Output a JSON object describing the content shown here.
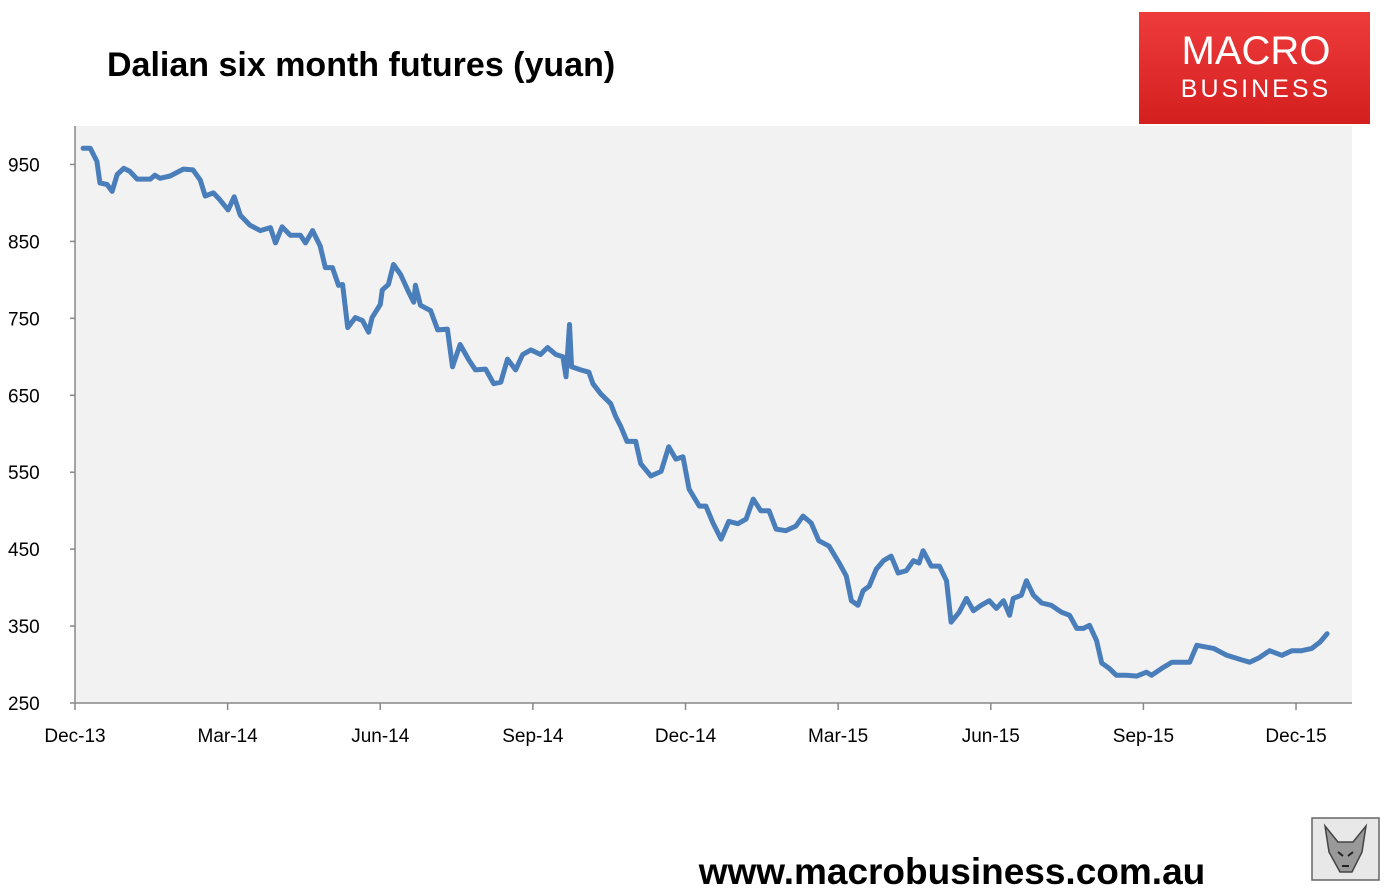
{
  "chart_data": {
    "type": "line",
    "title": "Dalian six month futures (yuan)",
    "x": [
      0.16,
      0.3,
      0.43,
      0.49,
      0.63,
      0.73,
      0.83,
      0.96,
      1.08,
      1.22,
      1.48,
      1.57,
      1.67,
      1.87,
      2.13,
      2.32,
      2.46,
      2.56,
      2.72,
      2.85,
      3.01,
      3.13,
      3.25,
      3.44,
      3.64,
      3.84,
      3.94,
      4.07,
      4.23,
      4.43,
      4.53,
      4.67,
      4.82,
      4.92,
      5.06,
      5.18,
      5.26,
      5.36,
      5.51,
      5.65,
      5.77,
      5.84,
      6.0,
      6.04,
      6.16,
      6.26,
      6.4,
      6.56,
      6.66,
      6.69,
      6.79,
      6.99,
      7.13,
      7.32,
      7.42,
      7.57,
      7.74,
      7.87,
      8.07,
      8.23,
      8.37,
      8.5,
      8.66,
      8.8,
      8.96,
      9.15,
      9.29,
      9.45,
      9.59,
      9.65,
      9.72,
      9.76,
      9.94,
      10.1,
      10.18,
      10.33,
      10.53,
      10.63,
      10.73,
      10.85,
      11.02,
      11.12,
      11.32,
      11.52,
      11.67,
      11.81,
      11.95,
      12.07,
      12.27,
      12.4,
      12.54,
      12.7,
      12.85,
      13.03,
      13.19,
      13.33,
      13.48,
      13.64,
      13.78,
      13.97,
      14.17,
      14.31,
      14.47,
      14.62,
      14.82,
      15.02,
      15.16,
      15.26,
      15.39,
      15.49,
      15.61,
      15.75,
      15.89,
      16.04,
      16.18,
      16.34,
      16.48,
      16.59,
      16.67,
      16.83,
      16.99,
      17.13,
      17.22,
      17.38,
      17.52,
      17.66,
      17.81,
      17.97,
      18.11,
      18.25,
      18.37,
      18.44,
      18.6,
      18.7,
      18.84,
      19.0,
      19.19,
      19.39,
      19.55,
      19.69,
      19.82,
      19.94,
      20.08,
      20.18,
      20.33,
      20.47,
      20.67,
      20.87,
      21.06,
      21.16,
      21.36,
      21.56,
      21.91,
      22.05,
      22.38,
      22.64,
      22.93,
      23.09,
      23.28,
      23.48,
      23.72,
      23.92,
      24.11,
      24.31,
      24.47,
      24.61
    ],
    "series": [
      {
        "name": "Dalian six month futures",
        "color": "#4a7ebb",
        "values": [
          971,
          971,
          954,
          926,
          924,
          915,
          937,
          945,
          941,
          931,
          931,
          936,
          932,
          935,
          944,
          943,
          930,
          909,
          913,
          904,
          891,
          908,
          884,
          871,
          864,
          868,
          848,
          869,
          858,
          858,
          848,
          864,
          844,
          816,
          816,
          793,
          794,
          738,
          751,
          747,
          732,
          751,
          768,
          787,
          794,
          820,
          807,
          784,
          771,
          793,
          767,
          760,
          735,
          736,
          687,
          716,
          696,
          683,
          684,
          665,
          667,
          697,
          683,
          703,
          709,
          703,
          712,
          703,
          700,
          674,
          742,
          687,
          683,
          680,
          665,
          652,
          639,
          622,
          609,
          590,
          590,
          561,
          545,
          551,
          583,
          567,
          570,
          528,
          506,
          506,
          484,
          463,
          486,
          483,
          489,
          515,
          500,
          500,
          476,
          474,
          480,
          493,
          484,
          461,
          454,
          432,
          415,
          383,
          377,
          396,
          402,
          424,
          435,
          441,
          419,
          422,
          435,
          432,
          448,
          428,
          428,
          409,
          355,
          368,
          386,
          370,
          377,
          383,
          373,
          383,
          364,
          386,
          390,
          409,
          390,
          380,
          377,
          368,
          364,
          347,
          347,
          351,
          331,
          302,
          295,
          286,
          286,
          285,
          290,
          286,
          295,
          303,
          303,
          325,
          321,
          312,
          306,
          303,
          309,
          318,
          312,
          318,
          318,
          321,
          329,
          340
        ]
      }
    ],
    "xlim": [
      0,
      25.1
    ],
    "xticks": [
      {
        "value": 0,
        "label": "Dec-13"
      },
      {
        "value": 3,
        "label": "Mar-14"
      },
      {
        "value": 6,
        "label": "Jun-14"
      },
      {
        "value": 9,
        "label": "Sep-14"
      },
      {
        "value": 12,
        "label": "Dec-14"
      },
      {
        "value": 15,
        "label": "Mar-15"
      },
      {
        "value": 18,
        "label": "Jun-15"
      },
      {
        "value": 21,
        "label": "Sep-15"
      },
      {
        "value": 24,
        "label": "Dec-15"
      }
    ],
    "ylim": [
      250,
      1000
    ],
    "yticks": [
      250,
      350,
      450,
      550,
      650,
      750,
      850,
      950
    ],
    "grid": false
  },
  "logo": {
    "line1": "MACRO",
    "line2": "BUSINESS"
  },
  "footer": "www.macrobusiness.com.au"
}
